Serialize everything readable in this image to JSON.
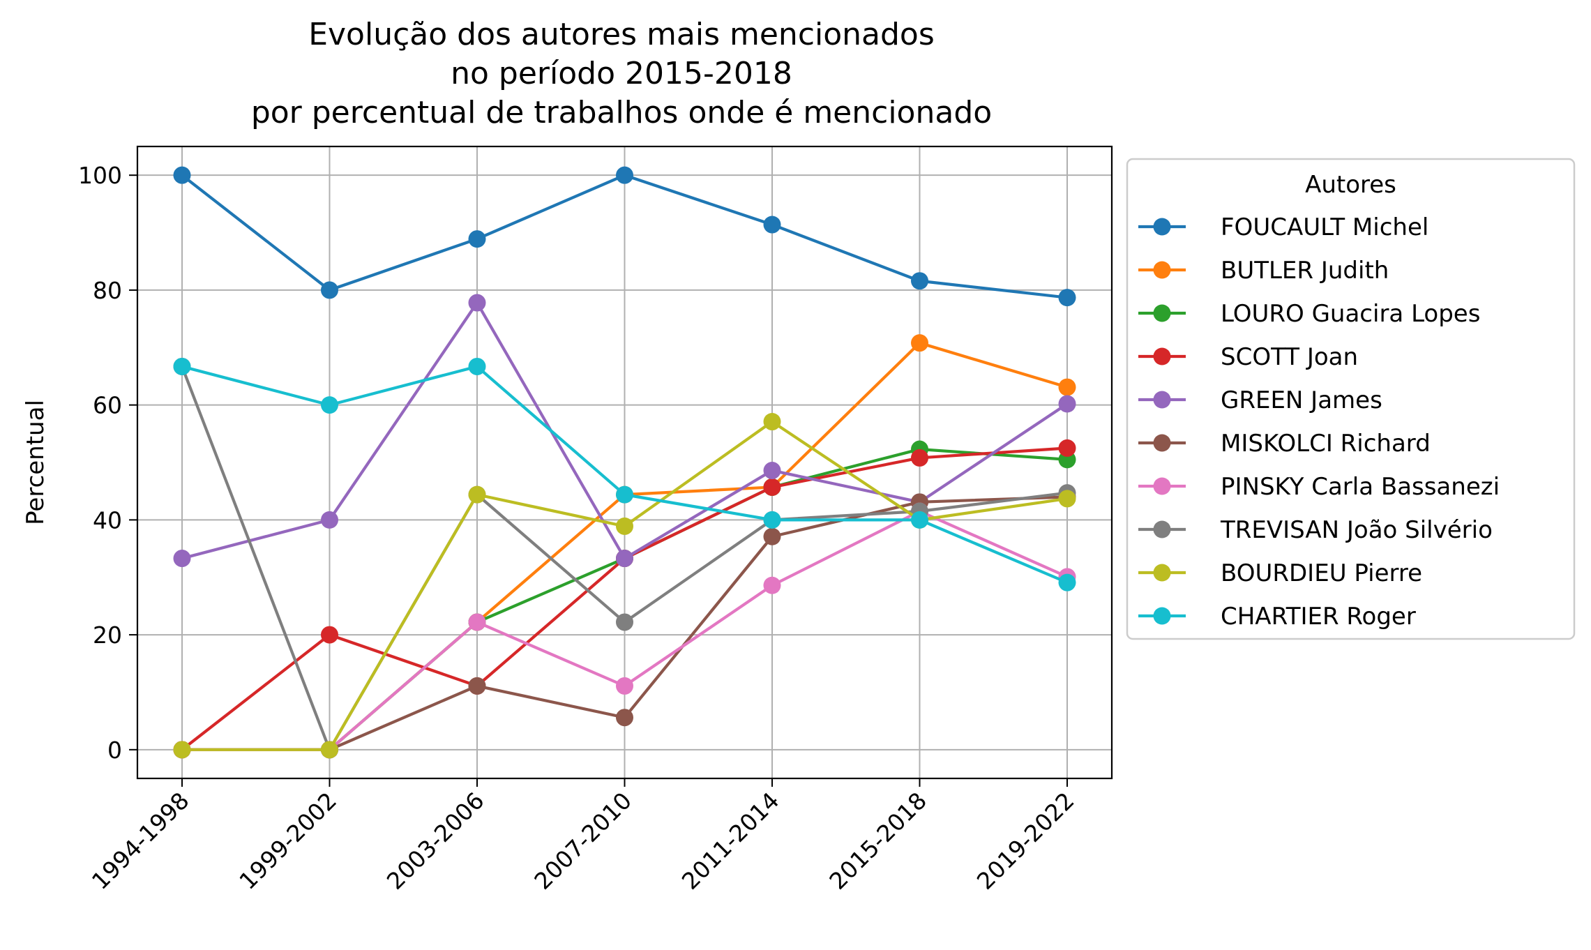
{
  "chart_data": {
    "type": "line",
    "title_lines": [
      "Evolução dos autores mais mencionados",
      "no período 2015-2018",
      "por percentual de trabalhos onde é mencionado"
    ],
    "xlabel": "",
    "ylabel": "Percentual",
    "categories": [
      "1994-1998",
      "1999-2002",
      "2003-2006",
      "2007-2010",
      "2011-2014",
      "2015-2018",
      "2019-2022"
    ],
    "ylim": [
      -5,
      105
    ],
    "yticks": [
      0,
      20,
      40,
      60,
      80,
      100
    ],
    "grid": true,
    "legend": {
      "title": "Autores",
      "placement": "outside-right"
    },
    "series": [
      {
        "name": "FOUCAULT Michel",
        "color": "#1f77b4",
        "values": [
          100,
          80,
          88.9,
          100,
          91.4,
          81.6,
          78.7
        ]
      },
      {
        "name": "BUTLER Judith",
        "color": "#ff7f0e",
        "values": [
          0,
          0,
          22.2,
          44.4,
          45.7,
          70.8,
          63.1
        ]
      },
      {
        "name": "LOURO Guacira Lopes",
        "color": "#2ca02c",
        "values": [
          0,
          0,
          22.2,
          33.3,
          45.7,
          52.3,
          50.5
        ]
      },
      {
        "name": "SCOTT Joan",
        "color": "#d62728",
        "values": [
          0,
          20,
          11.1,
          33.3,
          45.7,
          50.8,
          52.5
        ]
      },
      {
        "name": "GREEN James",
        "color": "#9467bd",
        "values": [
          33.3,
          40,
          77.8,
          33.3,
          48.6,
          43.1,
          60.2
        ]
      },
      {
        "name": "MISKOLCI Richard",
        "color": "#8c564b",
        "values": [
          0,
          0,
          11.1,
          5.6,
          37.1,
          43.1,
          44.0
        ]
      },
      {
        "name": "PINSKY Carla Bassanezi",
        "color": "#e377c2",
        "values": [
          0,
          0,
          22.2,
          11.1,
          28.6,
          41.5,
          30.1
        ]
      },
      {
        "name": "TREVISAN João Silvério",
        "color": "#7f7f7f",
        "values": [
          66.7,
          0,
          44.4,
          22.2,
          40,
          41.5,
          44.7
        ]
      },
      {
        "name": "BOURDIEU Pierre",
        "color": "#bcbd22",
        "values": [
          0,
          0,
          44.4,
          38.9,
          57.1,
          40,
          43.7
        ]
      },
      {
        "name": "CHARTIER Roger",
        "color": "#17becf",
        "values": [
          66.7,
          60,
          66.7,
          44.4,
          40,
          40,
          29.1
        ]
      }
    ]
  }
}
